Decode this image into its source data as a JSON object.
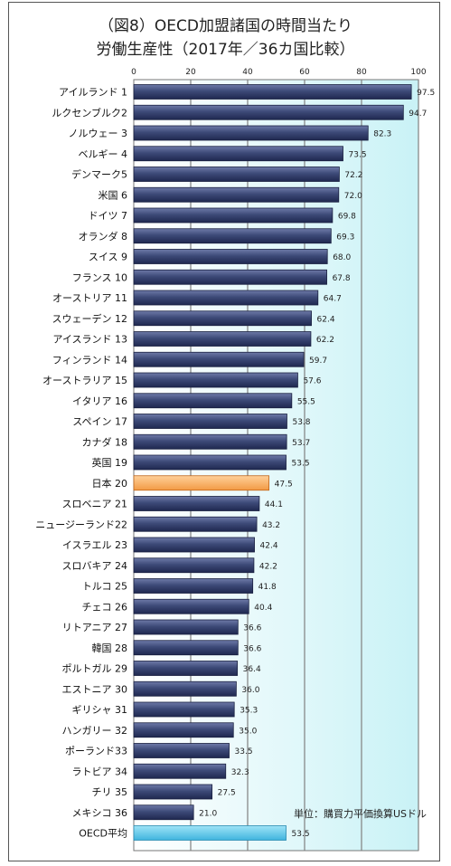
{
  "chart_data": {
    "type": "bar",
    "orientation": "horizontal",
    "title_line1": "（図8）OECD加盟諸国の時間当たり",
    "title_line2": "労働生産性（2017年／36カ国比較）",
    "unit_note": "単位：購買力平価換算USドル",
    "xlim": [
      0,
      100
    ],
    "x_ticks": [
      "0",
      "20",
      "40",
      "60",
      "80",
      "100"
    ],
    "grid": true,
    "categories": [
      "アイルランド 1",
      "ルクセンブルク2",
      "ノルウェー 3",
      "ベルギー 4",
      "デンマーク5",
      "米国 6",
      "ドイツ 7",
      "オランダ 8",
      "スイス 9",
      "フランス 10",
      "オーストリア 11",
      "スウェーデン 12",
      "アイスランド 13",
      "フィンランド 14",
      "オーストラリア 15",
      "イタリア 16",
      "スペイン 17",
      "カナダ 18",
      "英国 19",
      "日本 20",
      "スロベニア 21",
      "ニュージーランド22",
      "イスラエル 23",
      "スロバキア 24",
      "トルコ 25",
      "チェコ 26",
      "リトアニア 27",
      "韓国 28",
      "ポルトガル 29",
      "エストニア 30",
      "ギリシャ 31",
      "ハンガリー 32",
      "ポーランド33",
      "ラトビア 34",
      "チリ 35",
      "メキシコ 36",
      "OECD平均"
    ],
    "values": [
      97.5,
      94.7,
      82.3,
      73.5,
      72.2,
      72.0,
      69.8,
      69.3,
      68.0,
      67.8,
      64.7,
      62.4,
      62.2,
      59.7,
      57.6,
      55.5,
      53.8,
      53.7,
      53.5,
      47.5,
      44.1,
      43.2,
      42.4,
      42.2,
      41.8,
      40.4,
      36.6,
      36.6,
      36.4,
      36.0,
      35.3,
      35.0,
      33.5,
      32.3,
      27.5,
      21.0,
      53.5
    ],
    "value_labels": [
      "97.5",
      "94.7",
      "82.3",
      "73.5",
      "72.2",
      "72.0",
      "69.8",
      "69.3",
      "68.0",
      "67.8",
      "64.7",
      "62.4",
      "62.2",
      "59.7",
      "57.6",
      "55.5",
      "53.8",
      "53.7",
      "53.5",
      "47.5",
      "44.1",
      "43.2",
      "42.4",
      "42.2",
      "41.8",
      "40.4",
      "36.6",
      "36.6",
      "36.4",
      "36.0",
      "35.3",
      "35.0",
      "33.5",
      "32.3",
      "27.5",
      "21.0",
      "53.5"
    ],
    "highlight": {
      "日本 20": "#f5a04a",
      "OECD平均": "#56c3e8"
    },
    "bar_color": "#3d4a78"
  }
}
